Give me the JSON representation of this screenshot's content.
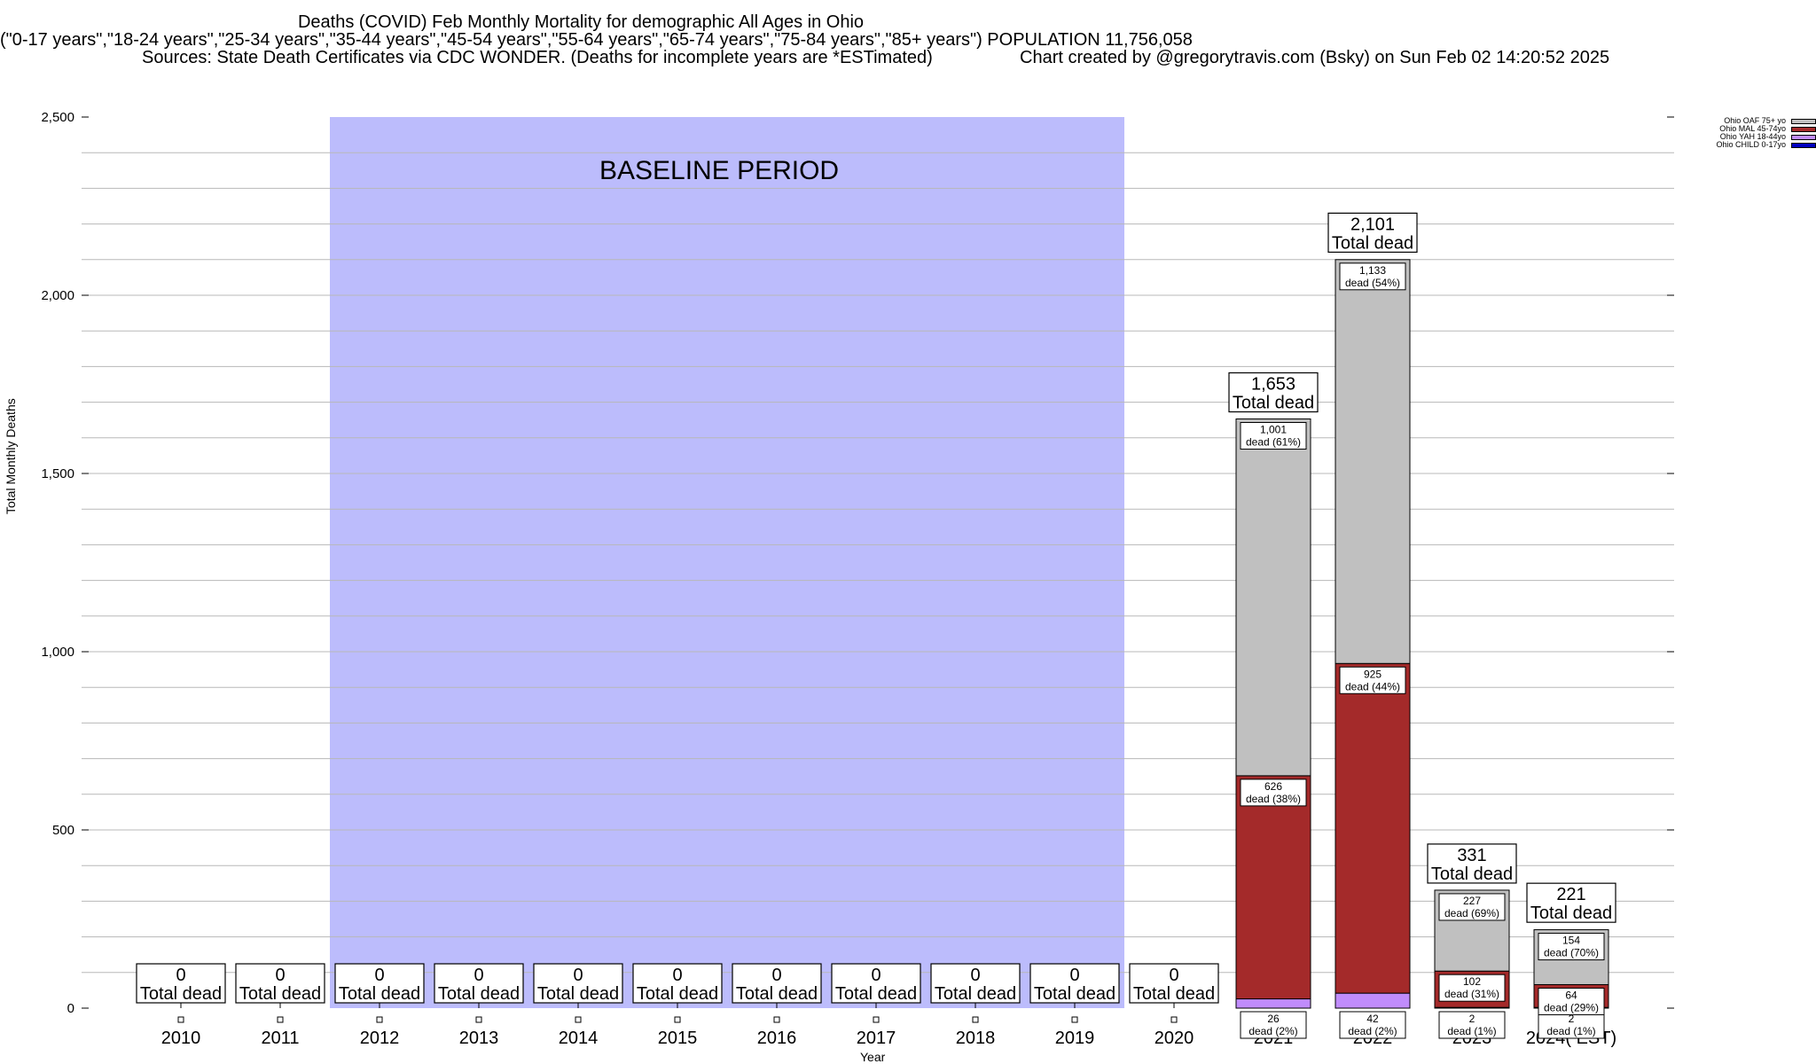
{
  "header": {
    "title": "Deaths (COVID) Feb Monthly Mortality for demographic All Ages in Ohio",
    "subtitle": "(\"0-17 years\",\"18-24 years\",\"25-34 years\",\"35-44 years\",\"45-54 years\",\"55-64 years\",\"65-74 years\",\"75-84 years\",\"85+ years\") POPULATION 11,756,058",
    "sources": "Sources: State Death Certificates via CDC WONDER. (Deaths for incomplete years are *ESTimated)",
    "credit": "Chart created by @gregorytravis.com (Bsky) on Sun Feb 02 14:20:52 2025"
  },
  "chart_data": {
    "type": "bar",
    "stacked": true,
    "categories": [
      "2010",
      "2011",
      "2012",
      "2013",
      "2014",
      "2015",
      "2016",
      "2017",
      "2018",
      "2019",
      "2020",
      "2021",
      "2022",
      "2023",
      "2024( EST)"
    ],
    "xlabel": "Year",
    "ylabel": "Total Monthly Deaths",
    "ylim": [
      0,
      2500
    ],
    "yticks": [
      0,
      500,
      1000,
      1500,
      2000,
      2500
    ],
    "ytick_labels": [
      "0",
      "500",
      "1,000",
      "1,500",
      "2,000",
      "2,500"
    ],
    "grid": true,
    "legend_position": "top-right, outside plot",
    "baseline_period": {
      "label": "BASELINE PERIOD",
      "start": "2012",
      "end": "2019",
      "color": "#bcbcfc"
    },
    "series": [
      {
        "name": "Ohio CHILD 0-17yo",
        "color": "#0000c0",
        "values": [
          0,
          0,
          0,
          0,
          0,
          0,
          0,
          0,
          0,
          0,
          0,
          0,
          0,
          0,
          0
        ],
        "labels": [
          "",
          "",
          "",
          "",
          "",
          "",
          "",
          "",
          "",
          "",
          "",
          "",
          "",
          "",
          ""
        ]
      },
      {
        "name": "Ohio YAH 18-44yo",
        "color": "#c08cfc",
        "values": [
          0,
          0,
          0,
          0,
          0,
          0,
          0,
          0,
          0,
          0,
          0,
          26,
          42,
          2,
          2
        ],
        "labels": [
          "",
          "",
          "",
          "",
          "",
          "",
          "",
          "",
          "",
          "",
          "",
          "26\ndead (2%)",
          "42\ndead (2%)",
          "2\ndead (1%)",
          "2\ndead (1%)"
        ]
      },
      {
        "name": "Ohio MAL 45-74yo",
        "color": "#a42a2a",
        "values": [
          0,
          0,
          0,
          0,
          0,
          0,
          0,
          0,
          0,
          0,
          0,
          626,
          925,
          102,
          64
        ],
        "labels": [
          "",
          "",
          "",
          "",
          "",
          "",
          "",
          "",
          "",
          "",
          "",
          "626\ndead (38%)",
          "925\ndead (44%)",
          "102\ndead (31%)",
          "64\ndead (29%)"
        ]
      },
      {
        "name": "Ohio OAF 75+ yo",
        "color": "#c0c0c0",
        "values": [
          0,
          0,
          0,
          0,
          0,
          0,
          0,
          0,
          0,
          0,
          0,
          1001,
          1133,
          227,
          154
        ],
        "labels": [
          "",
          "",
          "",
          "",
          "",
          "",
          "",
          "",
          "",
          "",
          "",
          "1,001\ndead (61%)",
          "1,133\ndead (54%)",
          "227\ndead (69%)",
          "154\ndead (70%)"
        ]
      }
    ],
    "totals": [
      0,
      0,
      0,
      0,
      0,
      0,
      0,
      0,
      0,
      0,
      0,
      1653,
      2101,
      331,
      221
    ],
    "total_labels": [
      "0",
      "0",
      "0",
      "0",
      "0",
      "0",
      "0",
      "0",
      "0",
      "0",
      "0",
      "1,653",
      "2,101",
      "331",
      "221"
    ],
    "total_suffix": "Total dead"
  },
  "legend": {
    "items": [
      {
        "label": "Ohio OAF 75+ yo",
        "color": "#c0c0c0"
      },
      {
        "label": "Ohio MAL 45-74yo",
        "color": "#a42a2a"
      },
      {
        "label": "Ohio YAH 18-44yo",
        "color": "#c08cfc"
      },
      {
        "label": "Ohio CHILD 0-17yo",
        "color": "#0000c0"
      }
    ]
  }
}
